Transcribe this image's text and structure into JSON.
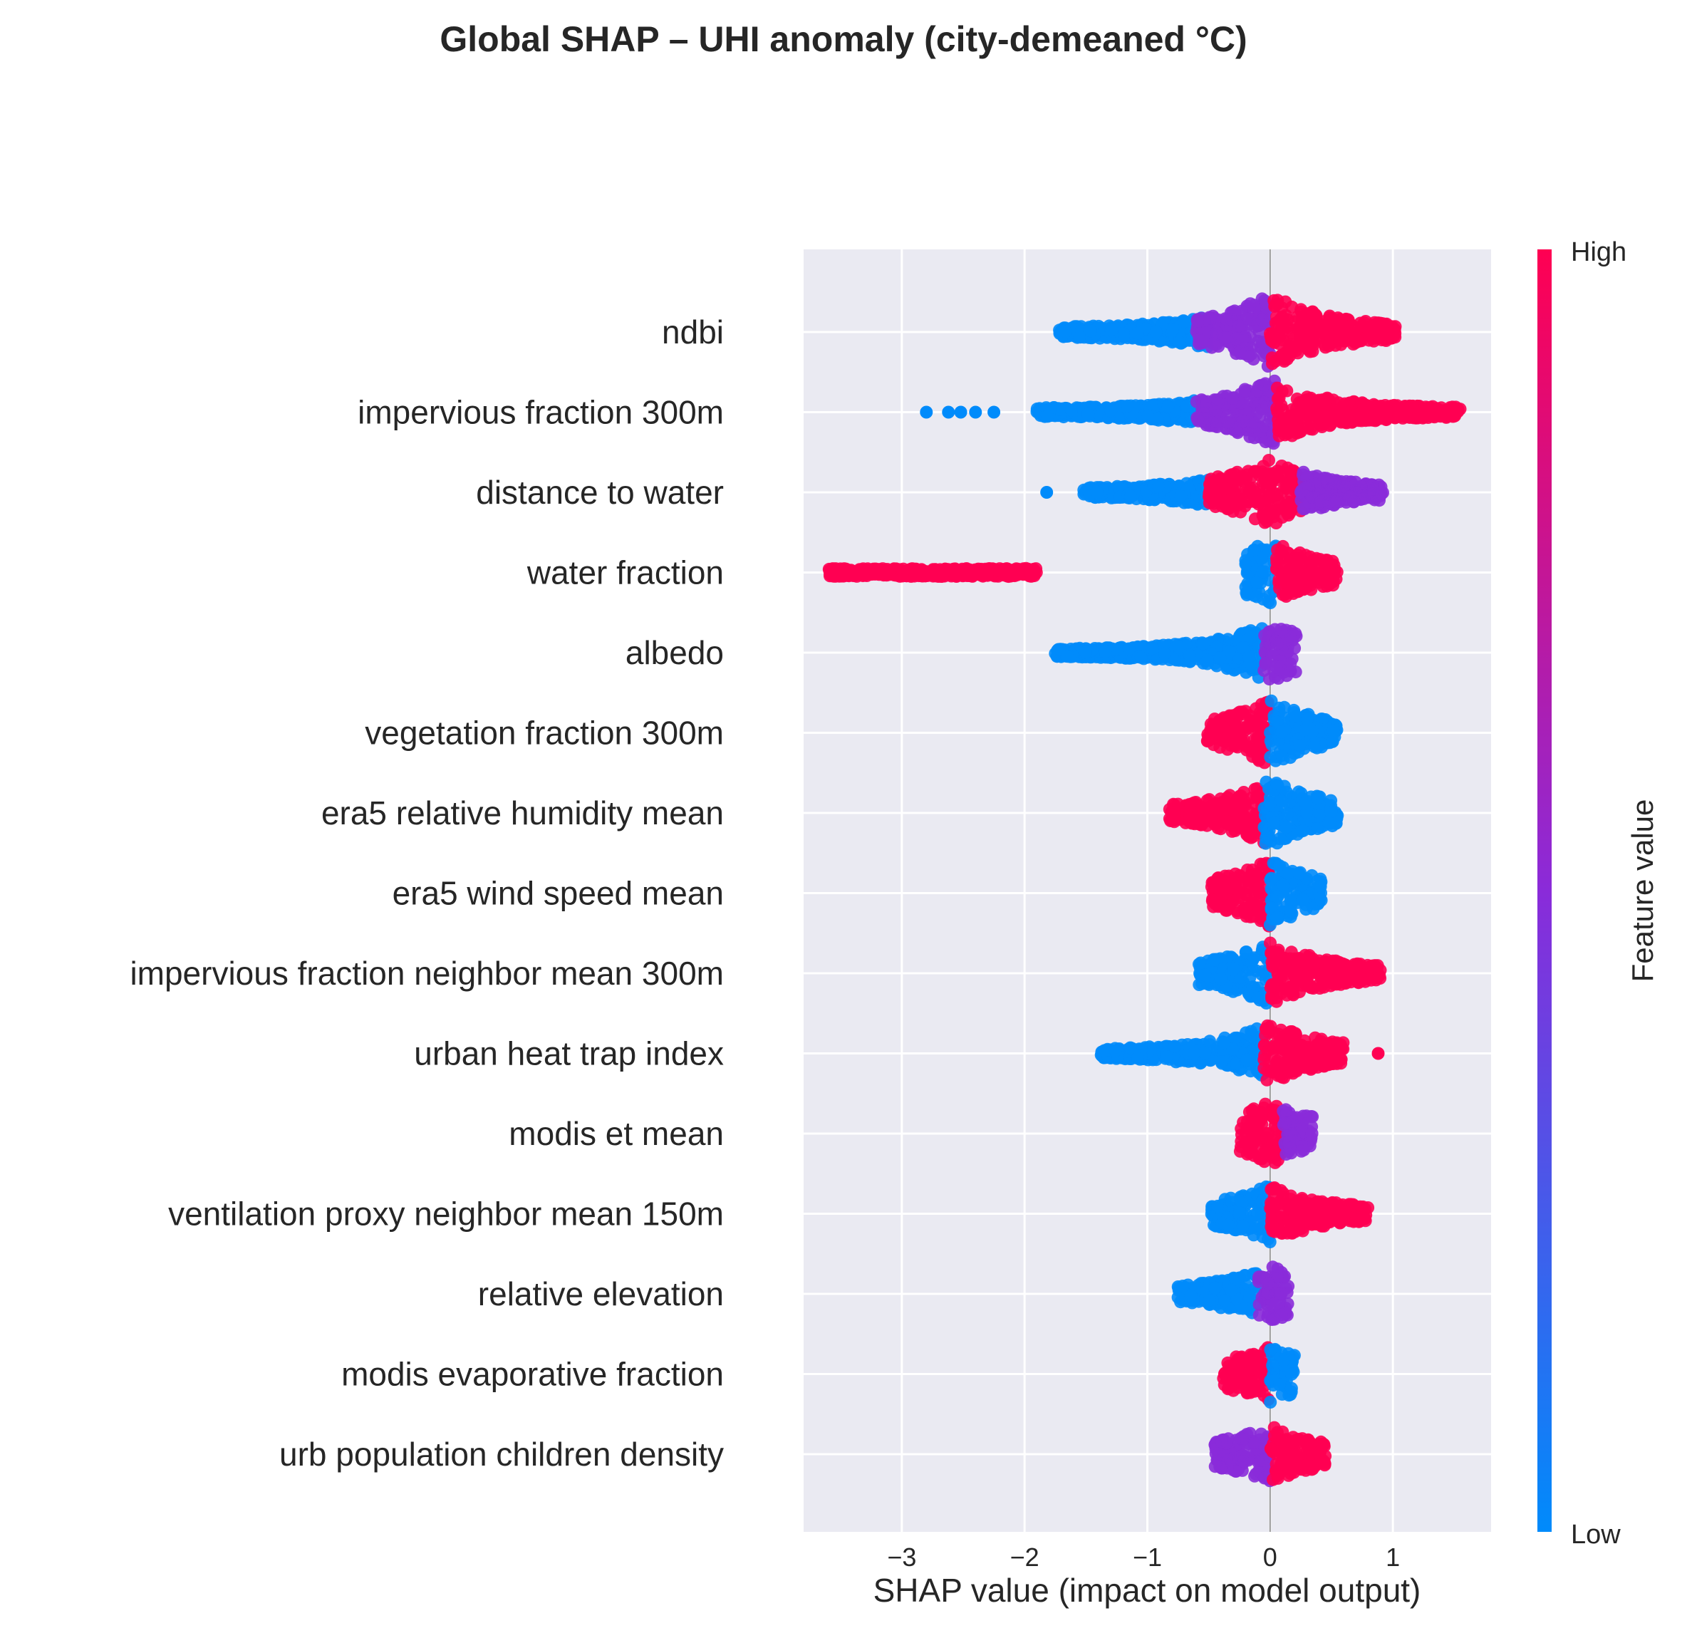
{
  "chart_data": {
    "type": "scatter",
    "subtype": "shap-beeswarm",
    "title": "Global SHAP – UHI anomaly (city-demeaned °C)",
    "xlabel": "SHAP value (impact on model output)",
    "xlim": [
      -3.8,
      1.8
    ],
    "xticks": [
      {
        "value": -3,
        "label": "−3"
      },
      {
        "value": -2,
        "label": "−2"
      },
      {
        "value": -1,
        "label": "−1"
      },
      {
        "value": 0,
        "label": "0"
      },
      {
        "value": 1,
        "label": "1"
      }
    ],
    "grid": true,
    "colorbar": {
      "label": "Feature value",
      "high_label": "High",
      "low_label": "Low",
      "low_color": "#008bfb",
      "mid_color": "#8a2bd9",
      "high_color": "#ff0052"
    },
    "colors": {
      "background_plot": "#eaeaf2",
      "grid": "#ffffff",
      "zero_line": "#999999"
    },
    "features": [
      {
        "name": "ndbi",
        "dist": [
          [
            -1.72,
            -1.3,
            "low"
          ],
          [
            -1.3,
            -0.5,
            "low"
          ],
          [
            -0.6,
            0.0,
            "mid"
          ],
          [
            0.0,
            0.55,
            "high"
          ],
          [
            0.55,
            1.02,
            "high"
          ]
        ],
        "width": 0.48
      },
      {
        "name": "impervious fraction 300m",
        "dist": [
          [
            -1.9,
            -0.6,
            "low"
          ],
          [
            -0.6,
            0.05,
            "mid"
          ],
          [
            0.05,
            0.7,
            "high"
          ],
          [
            0.7,
            1.55,
            "high"
          ]
        ],
        "outliers": [
          -2.8,
          -2.62,
          -2.52,
          -2.4,
          -2.25
        ],
        "width": 0.42
      },
      {
        "name": "distance to water",
        "dist": [
          [
            -1.52,
            -0.5,
            "low"
          ],
          [
            -0.5,
            0.25,
            "high"
          ],
          [
            0.25,
            0.92,
            "mid"
          ]
        ],
        "outliers": [
          -1.82
        ],
        "width": 0.42
      },
      {
        "name": "water fraction",
        "dist": [
          [
            -3.6,
            -1.9,
            "high"
          ],
          [
            -0.2,
            0.05,
            "low"
          ],
          [
            0.05,
            0.55,
            "high"
          ]
        ],
        "width": 0.4
      },
      {
        "name": "albedo",
        "dist": [
          [
            -1.75,
            -0.05,
            "low"
          ],
          [
            -0.05,
            0.22,
            "mid"
          ]
        ],
        "width": 0.38
      },
      {
        "name": "vegetation fraction 300m",
        "dist": [
          [
            -0.52,
            0.0,
            "high"
          ],
          [
            0.0,
            0.55,
            "low"
          ]
        ],
        "width": 0.42
      },
      {
        "name": "era5 relative humidity mean",
        "dist": [
          [
            -0.82,
            -0.05,
            "high"
          ],
          [
            -0.05,
            0.55,
            "low"
          ]
        ],
        "width": 0.42
      },
      {
        "name": "era5 wind speed mean",
        "dist": [
          [
            -0.48,
            0.0,
            "high"
          ],
          [
            0.0,
            0.42,
            "low"
          ]
        ],
        "width": 0.42
      },
      {
        "name": "impervious fraction neighbor mean 300m",
        "dist": [
          [
            -0.58,
            0.0,
            "low"
          ],
          [
            0.0,
            0.9,
            "high"
          ]
        ],
        "width": 0.4
      },
      {
        "name": "urban heat trap index",
        "dist": [
          [
            -1.38,
            -0.05,
            "low"
          ],
          [
            -0.05,
            0.6,
            "high"
          ]
        ],
        "outliers": [
          0.88
        ],
        "width": 0.38
      },
      {
        "name": "modis et mean",
        "dist": [
          [
            -0.25,
            0.1,
            "high"
          ],
          [
            0.1,
            0.35,
            "mid"
          ]
        ],
        "width": 0.4
      },
      {
        "name": "ventilation proxy neighbor mean 150m",
        "dist": [
          [
            -0.48,
            0.0,
            "low"
          ],
          [
            0.0,
            0.8,
            "high"
          ]
        ],
        "width": 0.36
      },
      {
        "name": "relative elevation",
        "dist": [
          [
            -0.75,
            -0.1,
            "low"
          ],
          [
            -0.1,
            0.15,
            "mid"
          ]
        ],
        "width": 0.36
      },
      {
        "name": "modis evaporative fraction",
        "dist": [
          [
            -0.38,
            0.0,
            "high"
          ],
          [
            0.0,
            0.2,
            "low"
          ]
        ],
        "width": 0.36
      },
      {
        "name": "urb population children density",
        "dist": [
          [
            -0.45,
            0.0,
            "mid"
          ],
          [
            0.0,
            0.45,
            "high"
          ]
        ],
        "width": 0.36
      }
    ]
  }
}
